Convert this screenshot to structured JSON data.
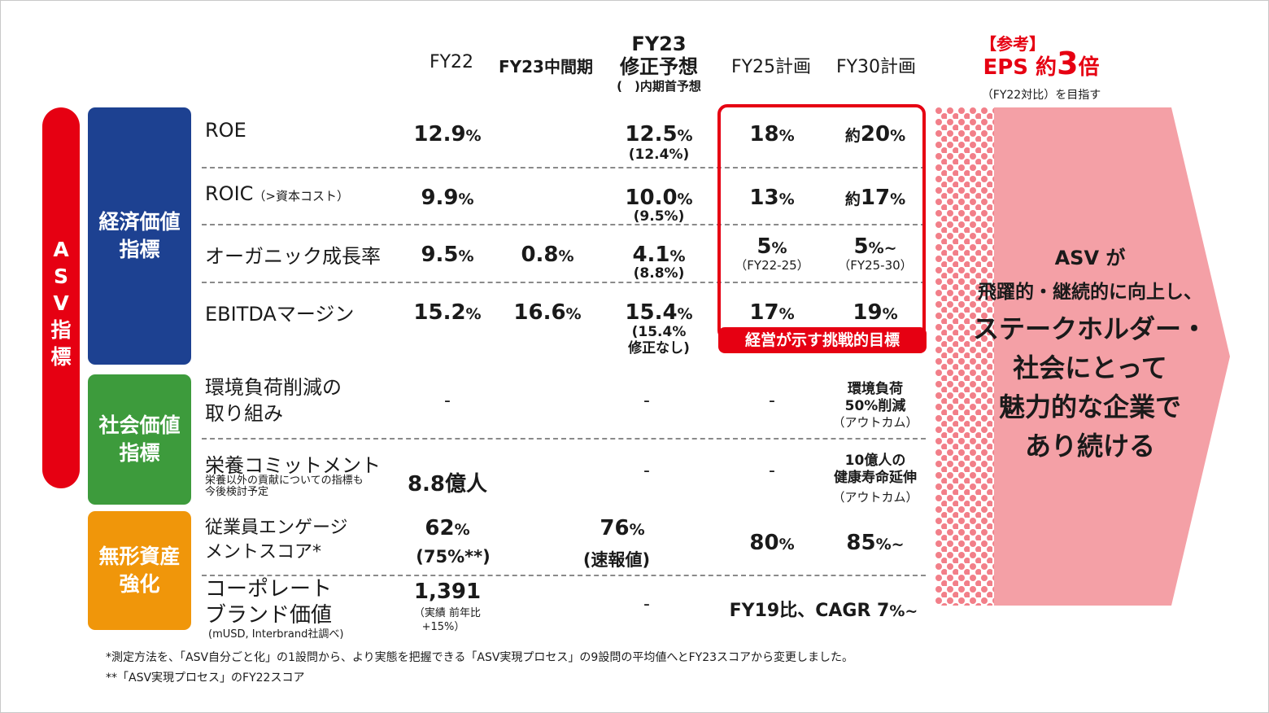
{
  "columns": {
    "fy22": "FY22",
    "fy23_interim": "FY23中間期",
    "fy23_revised_l1": "FY23",
    "fy23_revised_l2": "修正予想",
    "fy23_revised_l3": "(　)内期首予想",
    "fy25": "FY25計画",
    "fy30": "FY30計画"
  },
  "reference": {
    "tag": "【参考】",
    "eps_prefix": "EPS 約",
    "eps_num": "3",
    "eps_suffix": "倍",
    "note": "（FY22対比）を目指す"
  },
  "asv_label": [
    "A",
    "S",
    "V",
    "指",
    "標"
  ],
  "categories": {
    "economic": [
      "経済価値",
      "指標"
    ],
    "social": [
      "社会価値",
      "指標"
    ],
    "intangible": [
      "無形資産",
      "強化"
    ]
  },
  "rows": {
    "roe": {
      "label": "ROE",
      "fy22": "12.9",
      "fy23r": "12.5",
      "fy23r_init": "(12.4%)",
      "fy25": "18",
      "fy30_prefix": "約",
      "fy30": "20"
    },
    "roic": {
      "label": "ROIC",
      "label_note": "（>資本コスト）",
      "fy22": "9.9",
      "fy23r": "10.0",
      "fy23r_init": "(9.5%)",
      "fy25": "13",
      "fy30_prefix": "約",
      "fy30": "17"
    },
    "organic": {
      "label": "オーガニック成長率",
      "fy22": "9.5",
      "fy23i": "0.8",
      "fy23r": "4.1",
      "fy23r_init": "(8.8%)",
      "fy25": "5",
      "fy25_note": "（FY22-25）",
      "fy30": "5",
      "fy30_suffix": "~",
      "fy30_note": "（FY25-30）"
    },
    "ebitda": {
      "label": "EBITDAマージン",
      "fy22": "15.2",
      "fy23i": "16.6",
      "fy23r": "15.4",
      "fy23r_init_l1": "(15.4%",
      "fy23r_init_l2": "修正なし)",
      "fy25": "17",
      "fy30": "19"
    },
    "env": {
      "label_l1": "環境負荷削減の",
      "label_l2": "取り組み",
      "fy22": "-",
      "fy23r": "-",
      "fy25": "-",
      "fy30_l1": "環境負荷",
      "fy30_l2": "50%削減",
      "fy30_note": "（アウトカム）"
    },
    "nutrition": {
      "label": "栄養コミットメント",
      "note_l1": "栄養以外の貢献についての指標も",
      "note_l2": "今後検討予定",
      "fy22": "8.8億人",
      "fy23r": "-",
      "fy25": "-",
      "fy30_l1": "10億人の",
      "fy30_l2": "健康寿命延伸",
      "fy30_note": "（アウトカム）"
    },
    "engagement": {
      "label_l1": "従業員エンゲージ",
      "label_l2": "メントスコア*",
      "fy22": "62",
      "fy22_sub": "(75%**)",
      "fy23r": "76",
      "fy23r_sub": "(速報値)",
      "fy25": "80",
      "fy30": "85",
      "fy30_suffix": "~"
    },
    "brand": {
      "label_l1": "コーポレート",
      "label_l2": "ブランド価値",
      "note": "(mUSD, Interbrand社調べ)",
      "fy22": "1,391",
      "fy22_note_l1": "（実績 前年比",
      "fy22_note_l2": "+15%）",
      "fy23r": "-",
      "fy25_30": "FY19比、CAGR 7",
      "fy25_30_suffix": "~"
    }
  },
  "percent": "%",
  "target_label": "経営が示す挑戦的目標",
  "arrow_text": [
    "ASV が",
    "飛躍的・継続的に向上し、",
    "ステークホルダー・",
    "社会にとって",
    "魅力的な企業で",
    "あり続ける"
  ],
  "footnotes": [
    "*測定方法を、「ASV自分ごと化」の1設問から、より実態を把握できる「ASV実現プロセス」の9設問の平均値へとFY23スコアから変更しました。",
    "**「ASV実現プロセス」のFY22スコア"
  ],
  "colors": {
    "red": "#e60012",
    "economic": "#1d4191",
    "social": "#3d9b3c",
    "intangible": "#f0960a",
    "arrow": "#f4a0a6",
    "dots": "#f27f89"
  }
}
